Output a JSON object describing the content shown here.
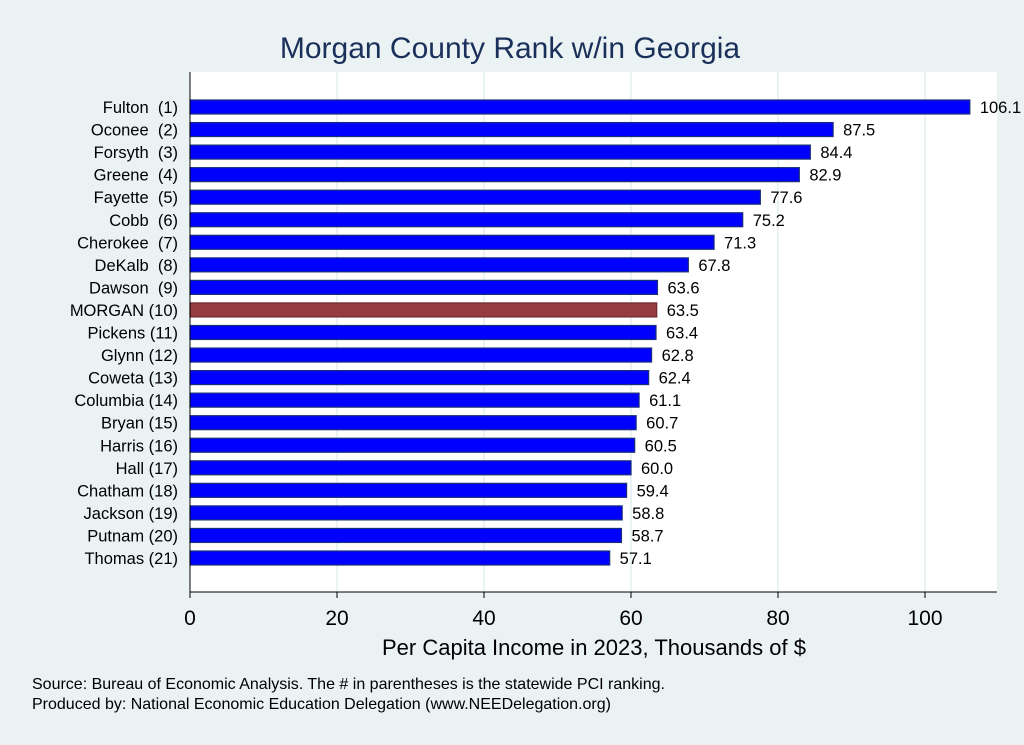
{
  "chart_data": {
    "type": "bar",
    "orientation": "horizontal",
    "title": "Morgan County Rank w/in Georgia",
    "xlabel": "Per Capita Income in 2023, Thousands of $",
    "ylabel": "",
    "xlim": [
      0,
      110
    ],
    "xticks": [
      0,
      20,
      40,
      60,
      80,
      100
    ],
    "grid": true,
    "categories": [
      "Fulton  (1)",
      "Oconee  (2)",
      "Forsyth  (3)",
      "Greene  (4)",
      "Fayette  (5)",
      "Cobb  (6)",
      "Cherokee  (7)",
      "DeKalb  (8)",
      "Dawson  (9)",
      "MORGAN (10)",
      "Pickens (11)",
      "Glynn (12)",
      "Coweta (13)",
      "Columbia (14)",
      "Bryan (15)",
      "Harris (16)",
      "Hall (17)",
      "Chatham (18)",
      "Jackson (19)",
      "Putnam (20)",
      "Thomas (21)"
    ],
    "values": [
      106.1,
      87.5,
      84.4,
      82.9,
      77.6,
      75.2,
      71.3,
      67.8,
      63.6,
      63.5,
      63.4,
      62.8,
      62.4,
      61.1,
      60.7,
      60.5,
      60.0,
      59.4,
      58.8,
      58.7,
      57.1
    ],
    "value_labels": [
      "106.1",
      "87.5",
      "84.4",
      "82.9",
      "77.6",
      "75.2",
      "71.3",
      "67.8",
      "63.6",
      "63.5",
      "63.4",
      "62.8",
      "62.4",
      "61.1",
      "60.7",
      "60.5",
      "60.0",
      "59.4",
      "58.8",
      "58.7",
      "57.1"
    ],
    "highlight_index": 9,
    "colors": {
      "bar": "#0000ff",
      "highlight": "#943c3f",
      "outline": "#1a2f7a",
      "background": "#eaf2f3",
      "title": "#1a2f5a"
    }
  },
  "notes": {
    "source": "Source: Bureau of Economic Analysis. The # in parentheses is the statewide PCI ranking.",
    "produced": "Produced by: National Economic Education Delegation (www.NEEDelegation.org)"
  }
}
